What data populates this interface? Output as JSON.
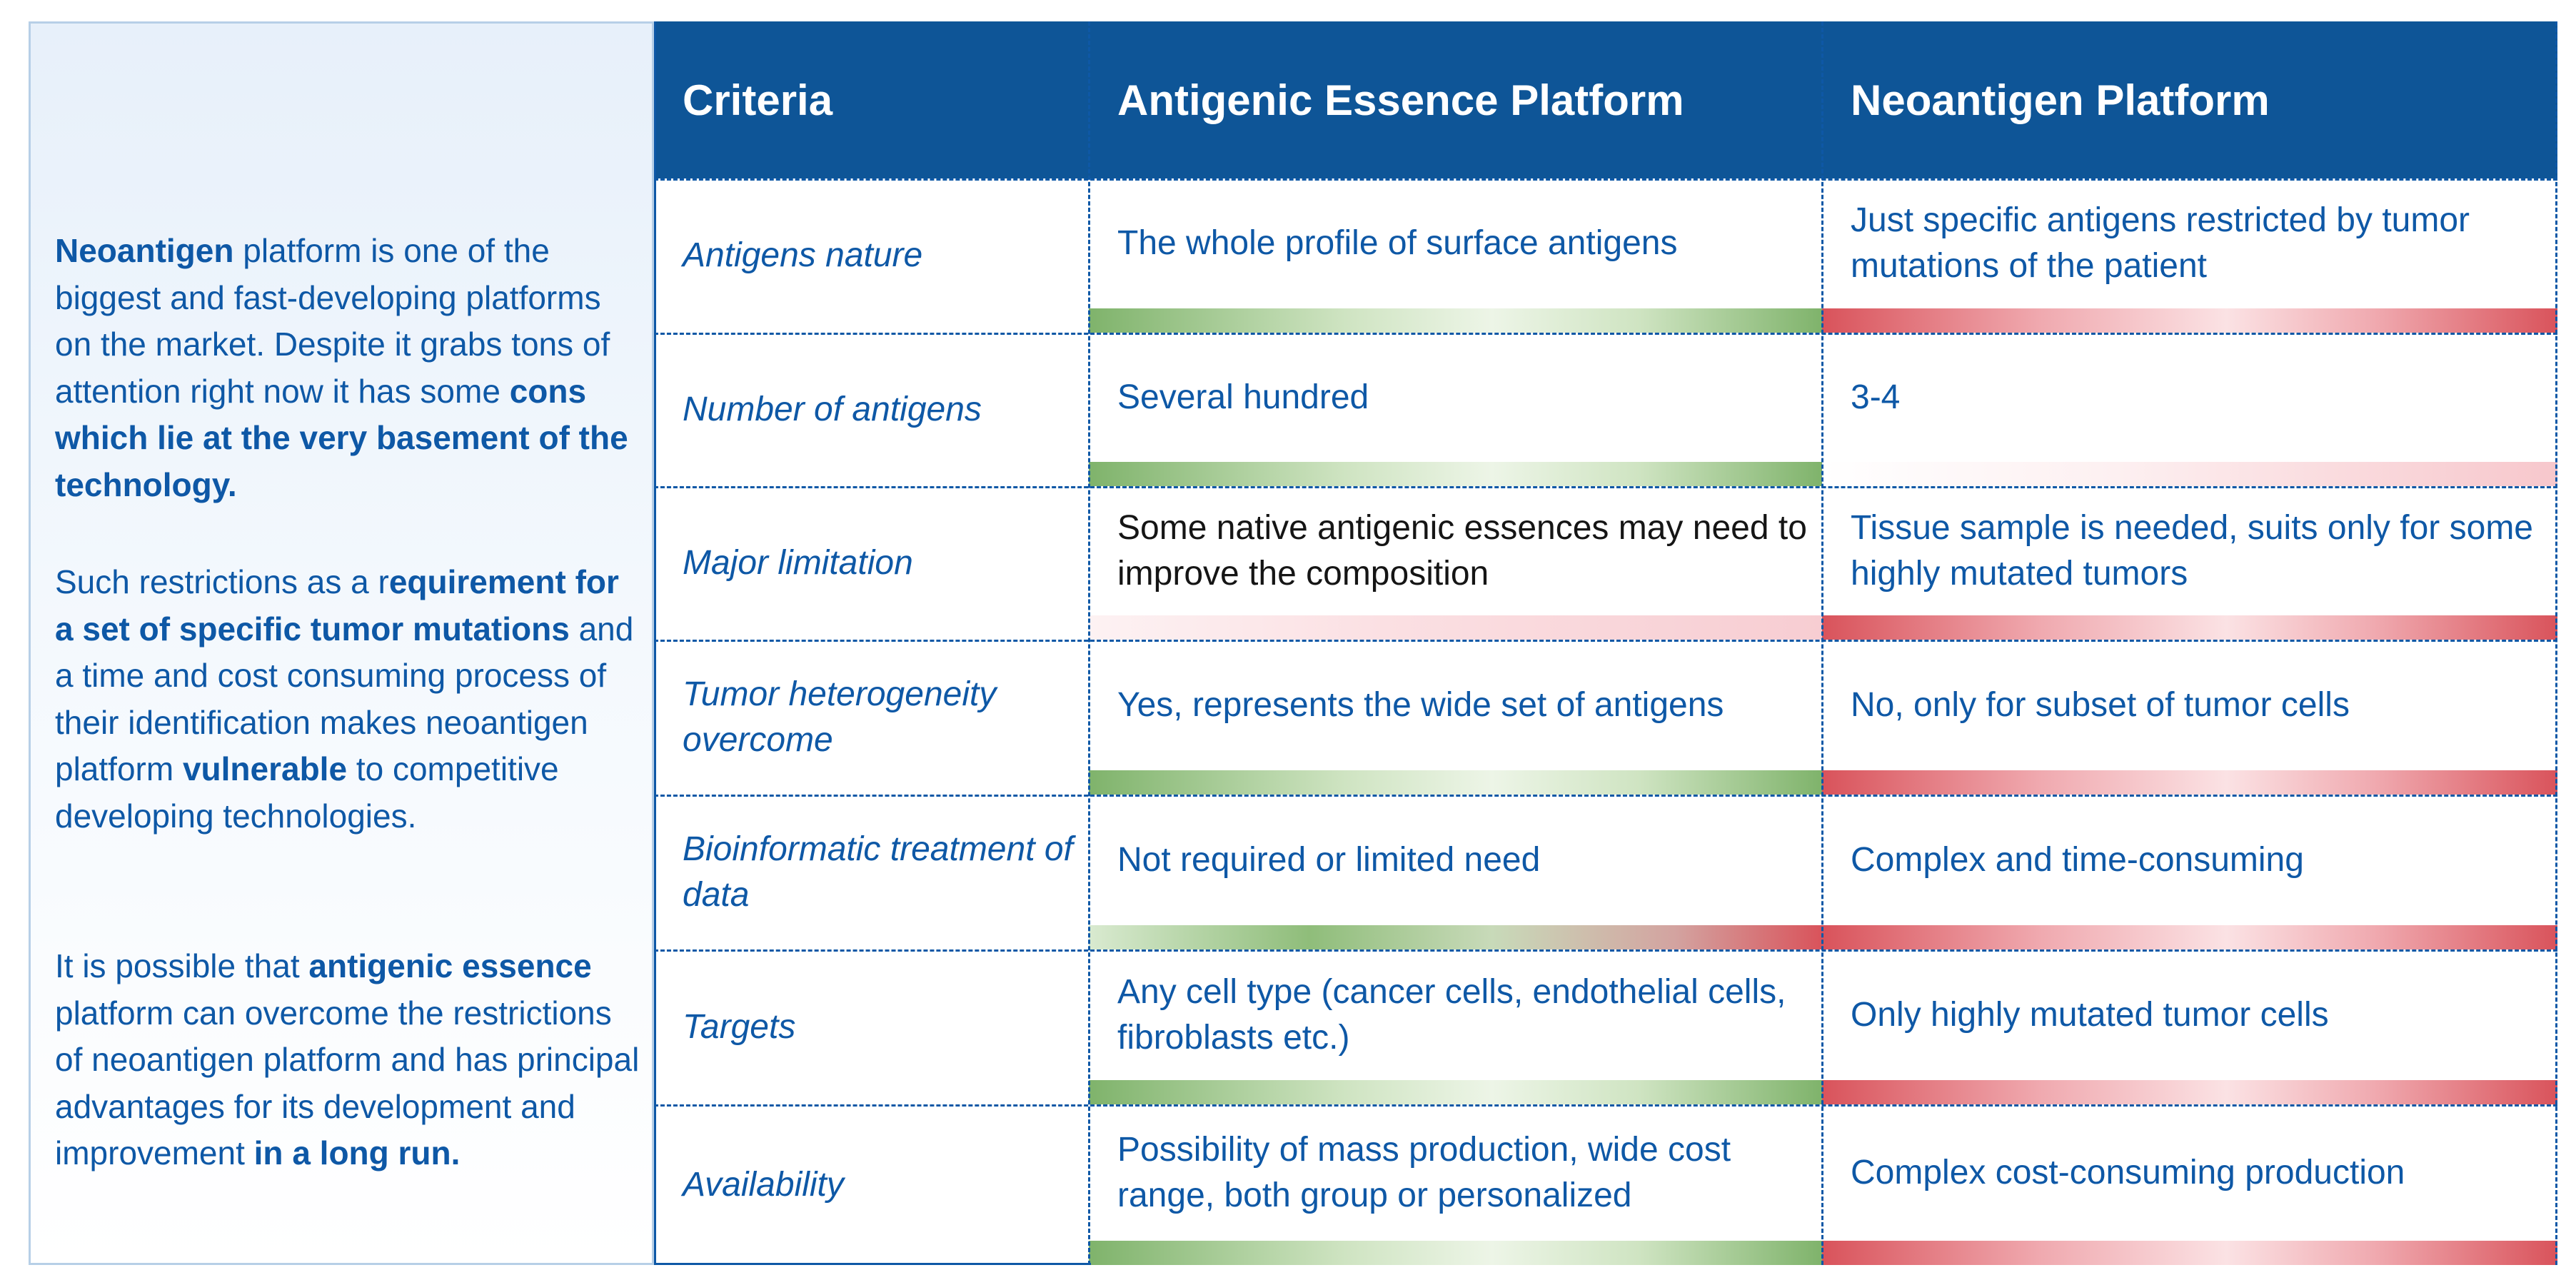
{
  "sidebar": {
    "p1": {
      "a": "Neoantigen",
      "b": " platform is one of the biggest and fast-developing platforms on the market. Despite it grabs tons of attention right now it has some ",
      "c": "cons which lie at the very basement of the technology."
    },
    "p2": {
      "a": "Such restrictions as a r",
      "b": "equirement for a set of specific tumor mutations",
      "c": " and a time and cost consuming process of their identification makes neoantigen platform ",
      "d": "vulnerable",
      "e": " to competitive developing technologies."
    },
    "p3": {
      "a": "It is possible that ",
      "b": "antigenic essence",
      "c": " platform can overcome the restrictions of neoantigen platform and has principal advantages for its development and improvement ",
      "d": "in a long run."
    }
  },
  "table": {
    "headers": [
      "Criteria",
      "Antigenic Essence Platform",
      "Neoantigen Platform"
    ],
    "rows": [
      {
        "criteria": "Antigens nature",
        "essence": "The whole profile of surface antigens",
        "neo": "Just specific antigens restricted by tumor mutations of the patient"
      },
      {
        "criteria": "Number of antigens",
        "essence": "Several hundred",
        "neo": "3-4"
      },
      {
        "criteria": "Major limitation",
        "essence": "Some native antigenic essences may need to improve the composition",
        "neo": "Tissue sample is needed, suits only for some highly mutated tumors"
      },
      {
        "criteria": "Tumor heterogeneity overcome",
        "essence": "Yes, represents the wide set of antigens",
        "neo": "No, only for subset of tumor cells"
      },
      {
        "criteria": "Bioinformatic treatment of data",
        "essence": "Not required or limited need",
        "neo": "Complex and time-consuming"
      },
      {
        "criteria": "Targets",
        "essence": "Any cell type (cancer cells, endothelial cells, fibroblasts etc.)",
        "neo": "Only highly mutated tumor cells"
      },
      {
        "criteria": "Availability",
        "essence": "Possibility of mass production, wide cost range, both group or personalized",
        "neo": "Complex cost-consuming production"
      }
    ]
  },
  "colors": {
    "header": "#0e5597",
    "text": "#0e58a6",
    "positive": "#7fb36b",
    "negative": "#d9535b"
  }
}
